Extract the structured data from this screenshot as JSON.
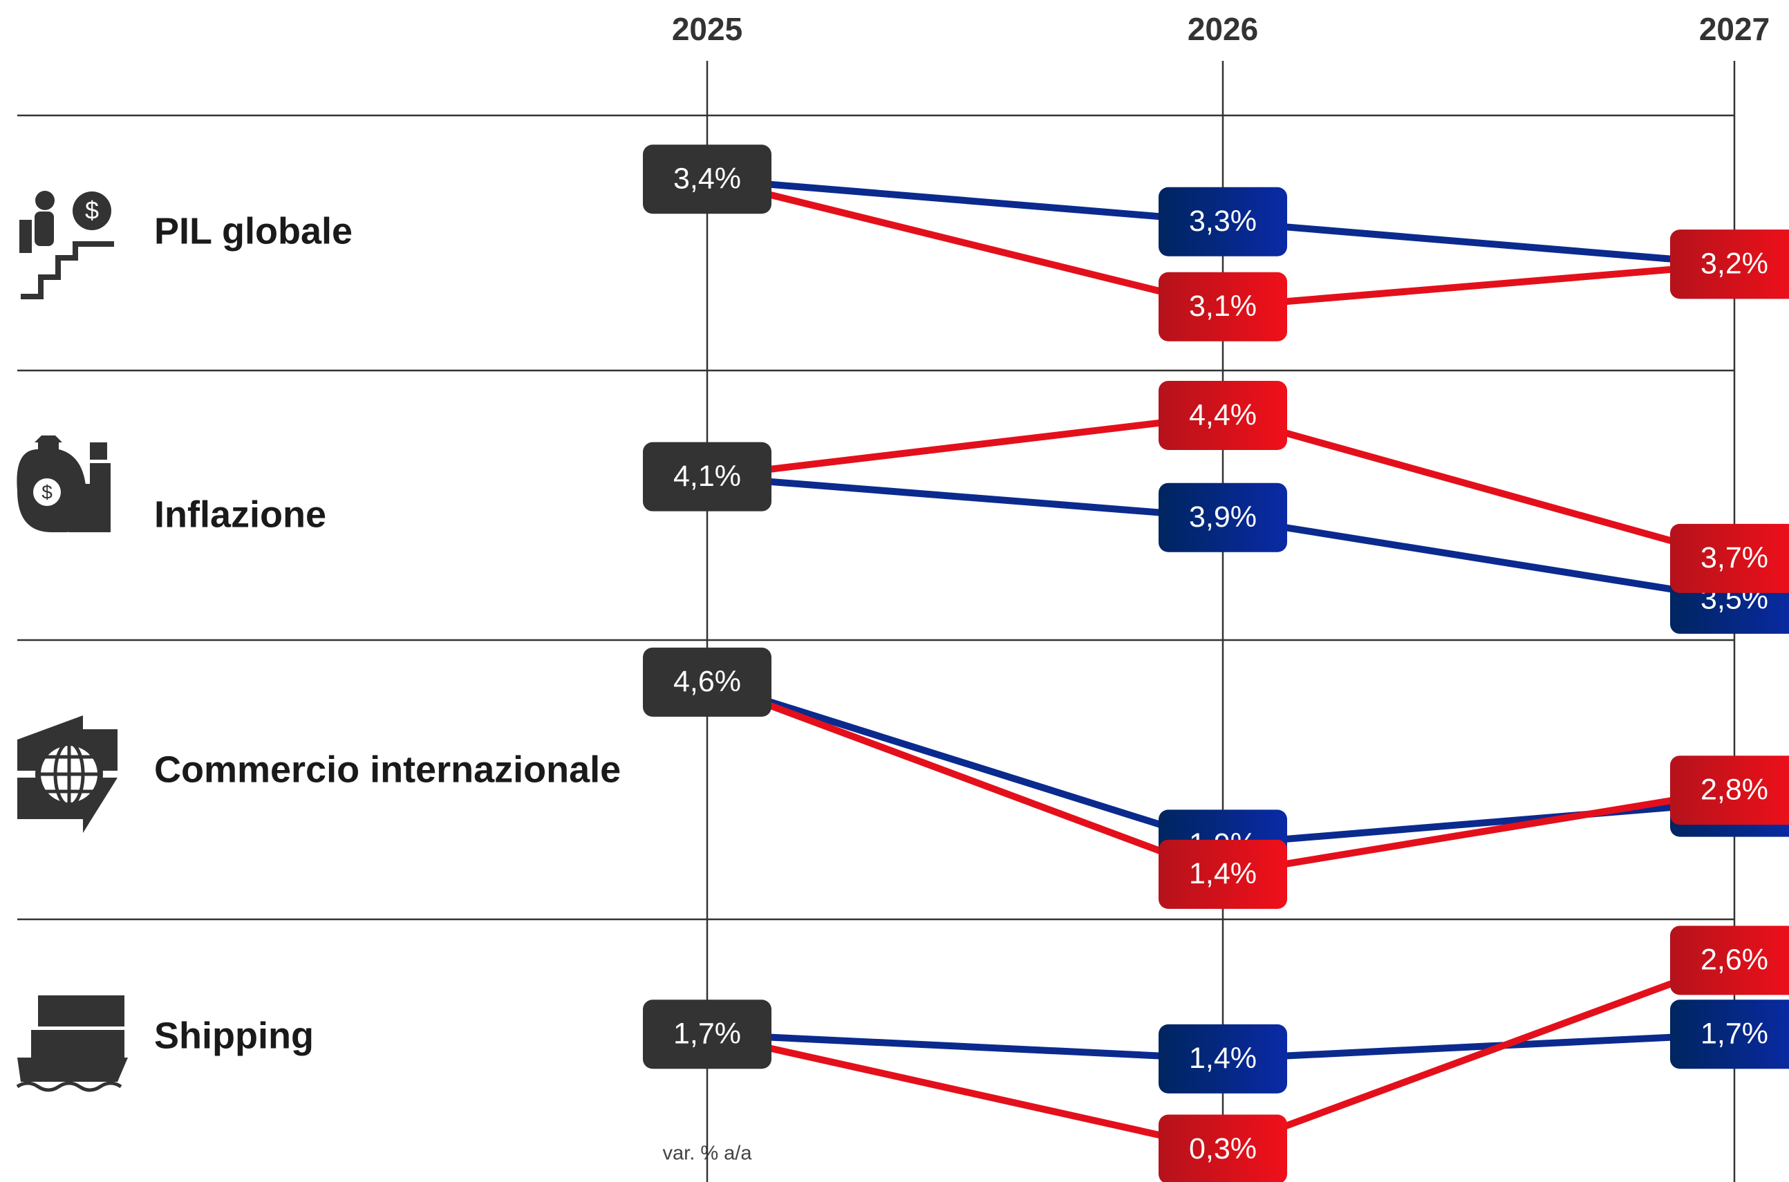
{
  "chart_data": {
    "type": "line",
    "categories": [
      "2025",
      "2026",
      "2027"
    ],
    "note": "var. % a/a",
    "panels": [
      {
        "title": "PIL globale",
        "ylim": [
          2.95,
          3.55
        ],
        "series": [
          {
            "color": "#0b2a8e",
            "values": [
              3.4,
              3.3,
              3.2
            ],
            "value_labels": [
              "3,4%",
              "3,3%",
              "3,2%"
            ]
          },
          {
            "color": "#e3101b",
            "values": [
              3.4,
              3.1,
              3.2
            ],
            "value_labels": [
              null,
              "3,1%",
              "3,2%"
            ]
          }
        ]
      },
      {
        "title": "Inflazione",
        "ylim": [
          3.3,
          4.62
        ],
        "series": [
          {
            "color": "#0b2a8e",
            "values": [
              4.1,
              3.9,
              3.5
            ],
            "value_labels": [
              "4,1%",
              "3,9%",
              "3,5%"
            ]
          },
          {
            "color": "#e3101b",
            "values": [
              4.1,
              4.4,
              3.7
            ],
            "value_labels": [
              null,
              "4,4%",
              "3,7%"
            ]
          }
        ]
      },
      {
        "title": "Commercio internazionale",
        "ylim": [
          0.65,
          5.3
        ],
        "series": [
          {
            "color": "#0b2a8e",
            "values": [
              4.6,
              1.9,
              2.6
            ],
            "value_labels": [
              "4,6%",
              "1,9%",
              "2,6%"
            ]
          },
          {
            "color": "#e3101b",
            "values": [
              4.6,
              1.4,
              2.8
            ],
            "value_labels": [
              null,
              "1,4%",
              "2,8%"
            ]
          }
        ]
      },
      {
        "title": "Shipping",
        "ylim": [
          -0.1,
          3.1
        ],
        "series": [
          {
            "color": "#0b2a8e",
            "values": [
              1.7,
              1.4,
              1.7
            ],
            "value_labels": [
              "1,7%",
              "1,4%",
              "1,7%"
            ]
          },
          {
            "color": "#e3101b",
            "values": [
              1.7,
              0.3,
              2.6
            ],
            "value_labels": [
              null,
              "0,3%",
              "2,6%"
            ]
          }
        ]
      }
    ]
  }
}
